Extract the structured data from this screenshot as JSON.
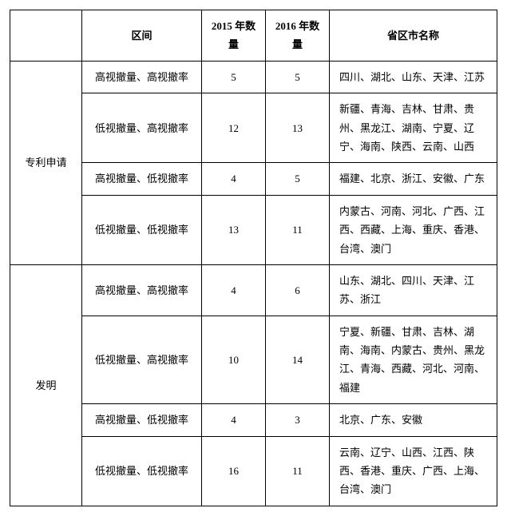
{
  "table": {
    "headers": {
      "interval": "区间",
      "count2015": "2015 年数量",
      "count2016": "2016 年数量",
      "provinces": "省区市名称"
    },
    "groups": [
      {
        "category": "专利申请",
        "rows": [
          {
            "interval": "高视撤量、高视撤率",
            "count2015": "5",
            "count2016": "5",
            "provinces": "四川、湖北、山东、天津、江苏"
          },
          {
            "interval": "低视撤量、高视撤率",
            "count2015": "12",
            "count2016": "13",
            "provinces": "新疆、青海、吉林、甘肃、贵州、黑龙江、湖南、宁夏、辽宁、海南、陕西、云南、山西"
          },
          {
            "interval": "高视撤量、低视撤率",
            "count2015": "4",
            "count2016": "5",
            "provinces": "福建、北京、浙江、安徽、广东"
          },
          {
            "interval": "低视撤量、低视撤率",
            "count2015": "13",
            "count2016": "11",
            "provinces": "内蒙古、河南、河北、广西、江西、西藏、上海、重庆、香港、台湾、澳门"
          }
        ]
      },
      {
        "category": "发明",
        "rows": [
          {
            "interval": "高视撤量、高视撤率",
            "count2015": "4",
            "count2016": "6",
            "provinces": "山东、湖北、四川、天津、江苏、浙江"
          },
          {
            "interval": "低视撤量、高视撤率",
            "count2015": "10",
            "count2016": "14",
            "provinces": "宁夏、新疆、甘肃、吉林、湖南、海南、内蒙古、贵州、黑龙江、青海、西藏、河北、河南、福建"
          },
          {
            "interval": "高视撤量、低视撤率",
            "count2015": "4",
            "count2016": "3",
            "provinces": "北京、广东、安徽"
          },
          {
            "interval": "低视撤量、低视撤率",
            "count2015": "16",
            "count2016": "11",
            "provinces": "云南、辽宁、山西、江西、陕西、香港、重庆、广西、上海、台湾、澳门"
          }
        ]
      }
    ]
  }
}
